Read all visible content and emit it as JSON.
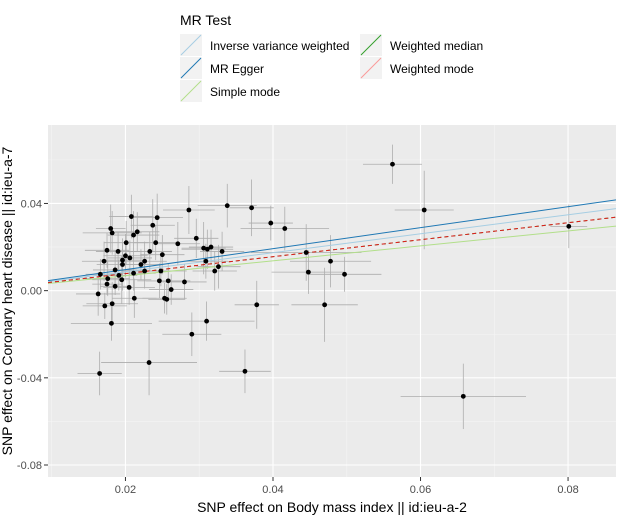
{
  "chart_data": {
    "type": "scatter",
    "title": "",
    "xlabel": "SNP effect on Body mass index || id:ieu-a-2",
    "ylabel": "SNP effect on Coronary heart disease || id:ieu-a-7",
    "xlim": [
      0.0095,
      0.0865
    ],
    "ylim": [
      -0.0855,
      0.076
    ],
    "x_ticks": [
      0.02,
      0.04,
      0.06,
      0.08
    ],
    "x_tick_labels": [
      "0.02",
      "0.04",
      "0.06",
      "0.08"
    ],
    "y_ticks": [
      -0.08,
      -0.04,
      0.0,
      0.04
    ],
    "y_tick_labels": [
      "-0.08",
      "-0.04",
      "0.00",
      "0.04"
    ],
    "grid": true,
    "legend_position": "top",
    "legend": {
      "title": "MR Test",
      "entries": [
        {
          "key": "ivw",
          "label": "Inverse variance weighted",
          "color": "#a6cee3",
          "dash": false
        },
        {
          "key": "egger",
          "label": "MR Egger",
          "color": "#1f78b4",
          "dash": false
        },
        {
          "key": "simple",
          "label": "Simple mode",
          "color": "#b2df8a",
          "dash": false
        },
        {
          "key": "median",
          "label": "Weighted median",
          "color": "#33a02c",
          "dash": false
        },
        {
          "key": "wmode",
          "label": "Weighted mode",
          "color": "#fb9a99",
          "dash": false
        }
      ]
    },
    "lines": [
      {
        "name": "Simple mode",
        "color": "#b2df8a",
        "intercept": 0.0,
        "slope": 0.3425,
        "dash": false
      },
      {
        "name": "Inverse variance weighted",
        "color": "#a6cee3",
        "intercept": 0.0,
        "slope": 0.435,
        "dash": false
      },
      {
        "name": "MR Egger",
        "color": "#1f78b4",
        "intercept": 0.0,
        "slope": 0.4815,
        "dash": false
      },
      {
        "name": "Weighted median",
        "color": "#33a02c",
        "intercept": 0.0,
        "slope": 0.3895,
        "dash": true
      },
      {
        "name": "Weighted mode",
        "color": "#e31a1c",
        "intercept": 0.0,
        "slope": 0.3895,
        "dash": true
      }
    ],
    "points": [
      {
        "x": 0.0165,
        "y": -0.038,
        "xse": 0.003,
        "yse": 0.01
      },
      {
        "x": 0.0232,
        "y": -0.033,
        "xse": 0.0065,
        "yse": 0.015
      },
      {
        "x": 0.029,
        "y": -0.02,
        "xse": 0.004,
        "yse": 0.01
      },
      {
        "x": 0.031,
        "y": -0.014,
        "xse": 0.0065,
        "yse": 0.009
      },
      {
        "x": 0.0181,
        "y": -0.015,
        "xse": 0.0055,
        "yse": 0.008
      },
      {
        "x": 0.0362,
        "y": -0.037,
        "xse": 0.0035,
        "yse": 0.01
      },
      {
        "x": 0.0658,
        "y": -0.0485,
        "xse": 0.0085,
        "yse": 0.015
      },
      {
        "x": 0.0562,
        "y": 0.058,
        "xse": 0.004,
        "yse": 0.009
      },
      {
        "x": 0.0605,
        "y": 0.037,
        "xse": 0.004,
        "yse": 0.018
      },
      {
        "x": 0.0801,
        "y": 0.0295,
        "xse": 0.0025,
        "yse": 0.01
      },
      {
        "x": 0.0338,
        "y": 0.039,
        "xse": 0.004,
        "yse": 0.01
      },
      {
        "x": 0.0371,
        "y": 0.038,
        "xse": 0.003,
        "yse": 0.013
      },
      {
        "x": 0.0397,
        "y": 0.031,
        "xse": 0.003,
        "yse": 0.008
      },
      {
        "x": 0.0416,
        "y": 0.0285,
        "xse": 0.006,
        "yse": 0.01
      },
      {
        "x": 0.0445,
        "y": 0.0175,
        "xse": 0.0075,
        "yse": 0.013
      },
      {
        "x": 0.0448,
        "y": 0.0085,
        "xse": 0.005,
        "yse": 0.01
      },
      {
        "x": 0.0478,
        "y": 0.0135,
        "xse": 0.0055,
        "yse": 0.012
      },
      {
        "x": 0.0497,
        "y": 0.0075,
        "xse": 0.005,
        "yse": 0.008
      },
      {
        "x": 0.047,
        "y": -0.0065,
        "xse": 0.0045,
        "yse": 0.017
      },
      {
        "x": 0.0378,
        "y": -0.0065,
        "xse": 0.003,
        "yse": 0.011
      },
      {
        "x": 0.0163,
        "y": -0.0015,
        "xse": 0.003,
        "yse": 0.01
      },
      {
        "x": 0.0172,
        "y": -0.007,
        "xse": 0.003,
        "yse": 0.006
      },
      {
        "x": 0.0182,
        "y": -0.006,
        "xse": 0.0035,
        "yse": 0.01
      },
      {
        "x": 0.0175,
        "y": 0.003,
        "xse": 0.002,
        "yse": 0.005
      },
      {
        "x": 0.0186,
        "y": 0.002,
        "xse": 0.002,
        "yse": 0.004
      },
      {
        "x": 0.0195,
        "y": 0.005,
        "xse": 0.004,
        "yse": 0.011
      },
      {
        "x": 0.0205,
        "y": 0.0015,
        "xse": 0.0035,
        "yse": 0.008
      },
      {
        "x": 0.0212,
        "y": -0.0035,
        "xse": 0.003,
        "yse": 0.009
      },
      {
        "x": 0.0175,
        "y": 0.0185,
        "xse": 0.003,
        "yse": 0.008
      },
      {
        "x": 0.0182,
        "y": 0.0265,
        "xse": 0.004,
        "yse": 0.01
      },
      {
        "x": 0.018,
        "y": 0.0285,
        "xse": 0.002,
        "yse": 0.011
      },
      {
        "x": 0.019,
        "y": 0.018,
        "xse": 0.003,
        "yse": 0.009
      },
      {
        "x": 0.0196,
        "y": 0.012,
        "xse": 0.0035,
        "yse": 0.012
      },
      {
        "x": 0.02,
        "y": 0.016,
        "xse": 0.003,
        "yse": 0.01
      },
      {
        "x": 0.0206,
        "y": 0.015,
        "xse": 0.003,
        "yse": 0.008
      },
      {
        "x": 0.0208,
        "y": 0.034,
        "xse": 0.003,
        "yse": 0.01
      },
      {
        "x": 0.0211,
        "y": 0.0255,
        "xse": 0.0035,
        "yse": 0.011
      },
      {
        "x": 0.0216,
        "y": 0.027,
        "xse": 0.003,
        "yse": 0.009
      },
      {
        "x": 0.0221,
        "y": 0.012,
        "xse": 0.003,
        "yse": 0.007
      },
      {
        "x": 0.0226,
        "y": 0.009,
        "xse": 0.003,
        "yse": 0.008
      },
      {
        "x": 0.0233,
        "y": 0.018,
        "xse": 0.003,
        "yse": 0.009
      },
      {
        "x": 0.0237,
        "y": 0.03,
        "xse": 0.003,
        "yse": 0.012
      },
      {
        "x": 0.0243,
        "y": 0.0335,
        "xse": 0.0035,
        "yse": 0.011
      },
      {
        "x": 0.0241,
        "y": 0.022,
        "xse": 0.003,
        "yse": 0.008
      },
      {
        "x": 0.0248,
        "y": 0.009,
        "xse": 0.0035,
        "yse": 0.007
      },
      {
        "x": 0.025,
        "y": 0.0165,
        "xse": 0.003,
        "yse": 0.009
      },
      {
        "x": 0.0246,
        "y": 0.0045,
        "xse": 0.003,
        "yse": 0.008
      },
      {
        "x": 0.0253,
        "y": -0.0035,
        "xse": 0.003,
        "yse": 0.007
      },
      {
        "x": 0.0256,
        "y": -0.004,
        "xse": 0.0025,
        "yse": 0.007
      },
      {
        "x": 0.0258,
        "y": 0.0045,
        "xse": 0.003,
        "yse": 0.008
      },
      {
        "x": 0.0262,
        "y": 0.0005,
        "xse": 0.003,
        "yse": 0.007
      },
      {
        "x": 0.0271,
        "y": 0.0215,
        "xse": 0.003,
        "yse": 0.01
      },
      {
        "x": 0.028,
        "y": 0.004,
        "xse": 0.003,
        "yse": 0.008
      },
      {
        "x": 0.0286,
        "y": 0.037,
        "xse": 0.0035,
        "yse": 0.011
      },
      {
        "x": 0.0296,
        "y": 0.024,
        "xse": 0.003,
        "yse": 0.009
      },
      {
        "x": 0.0306,
        "y": 0.0195,
        "xse": 0.003,
        "yse": 0.012
      },
      {
        "x": 0.0311,
        "y": 0.019,
        "xse": 0.0035,
        "yse": 0.009
      },
      {
        "x": 0.0309,
        "y": 0.0135,
        "xse": 0.003,
        "yse": 0.008
      },
      {
        "x": 0.0316,
        "y": 0.02,
        "xse": 0.003,
        "yse": 0.008
      },
      {
        "x": 0.0321,
        "y": 0.009,
        "xse": 0.003,
        "yse": 0.009
      },
      {
        "x": 0.0326,
        "y": 0.011,
        "xse": 0.003,
        "yse": 0.01
      },
      {
        "x": 0.0331,
        "y": 0.018,
        "xse": 0.003,
        "yse": 0.009
      },
      {
        "x": 0.0171,
        "y": 0.0135,
        "xse": 0.003,
        "yse": 0.009
      },
      {
        "x": 0.0166,
        "y": 0.0075,
        "xse": 0.002,
        "yse": 0.007
      },
      {
        "x": 0.0176,
        "y": 0.0055,
        "xse": 0.003,
        "yse": 0.008
      },
      {
        "x": 0.0186,
        "y": 0.0095,
        "xse": 0.003,
        "yse": 0.009
      },
      {
        "x": 0.0191,
        "y": 0.007,
        "xse": 0.0025,
        "yse": 0.007
      },
      {
        "x": 0.0211,
        "y": 0.008,
        "xse": 0.003,
        "yse": 0.008
      },
      {
        "x": 0.0226,
        "y": 0.0135,
        "xse": 0.003,
        "yse": 0.009
      },
      {
        "x": 0.0201,
        "y": 0.022,
        "xse": 0.003,
        "yse": 0.01
      },
      {
        "x": 0.0196,
        "y": 0.014,
        "xse": 0.003,
        "yse": 0.008
      }
    ]
  }
}
